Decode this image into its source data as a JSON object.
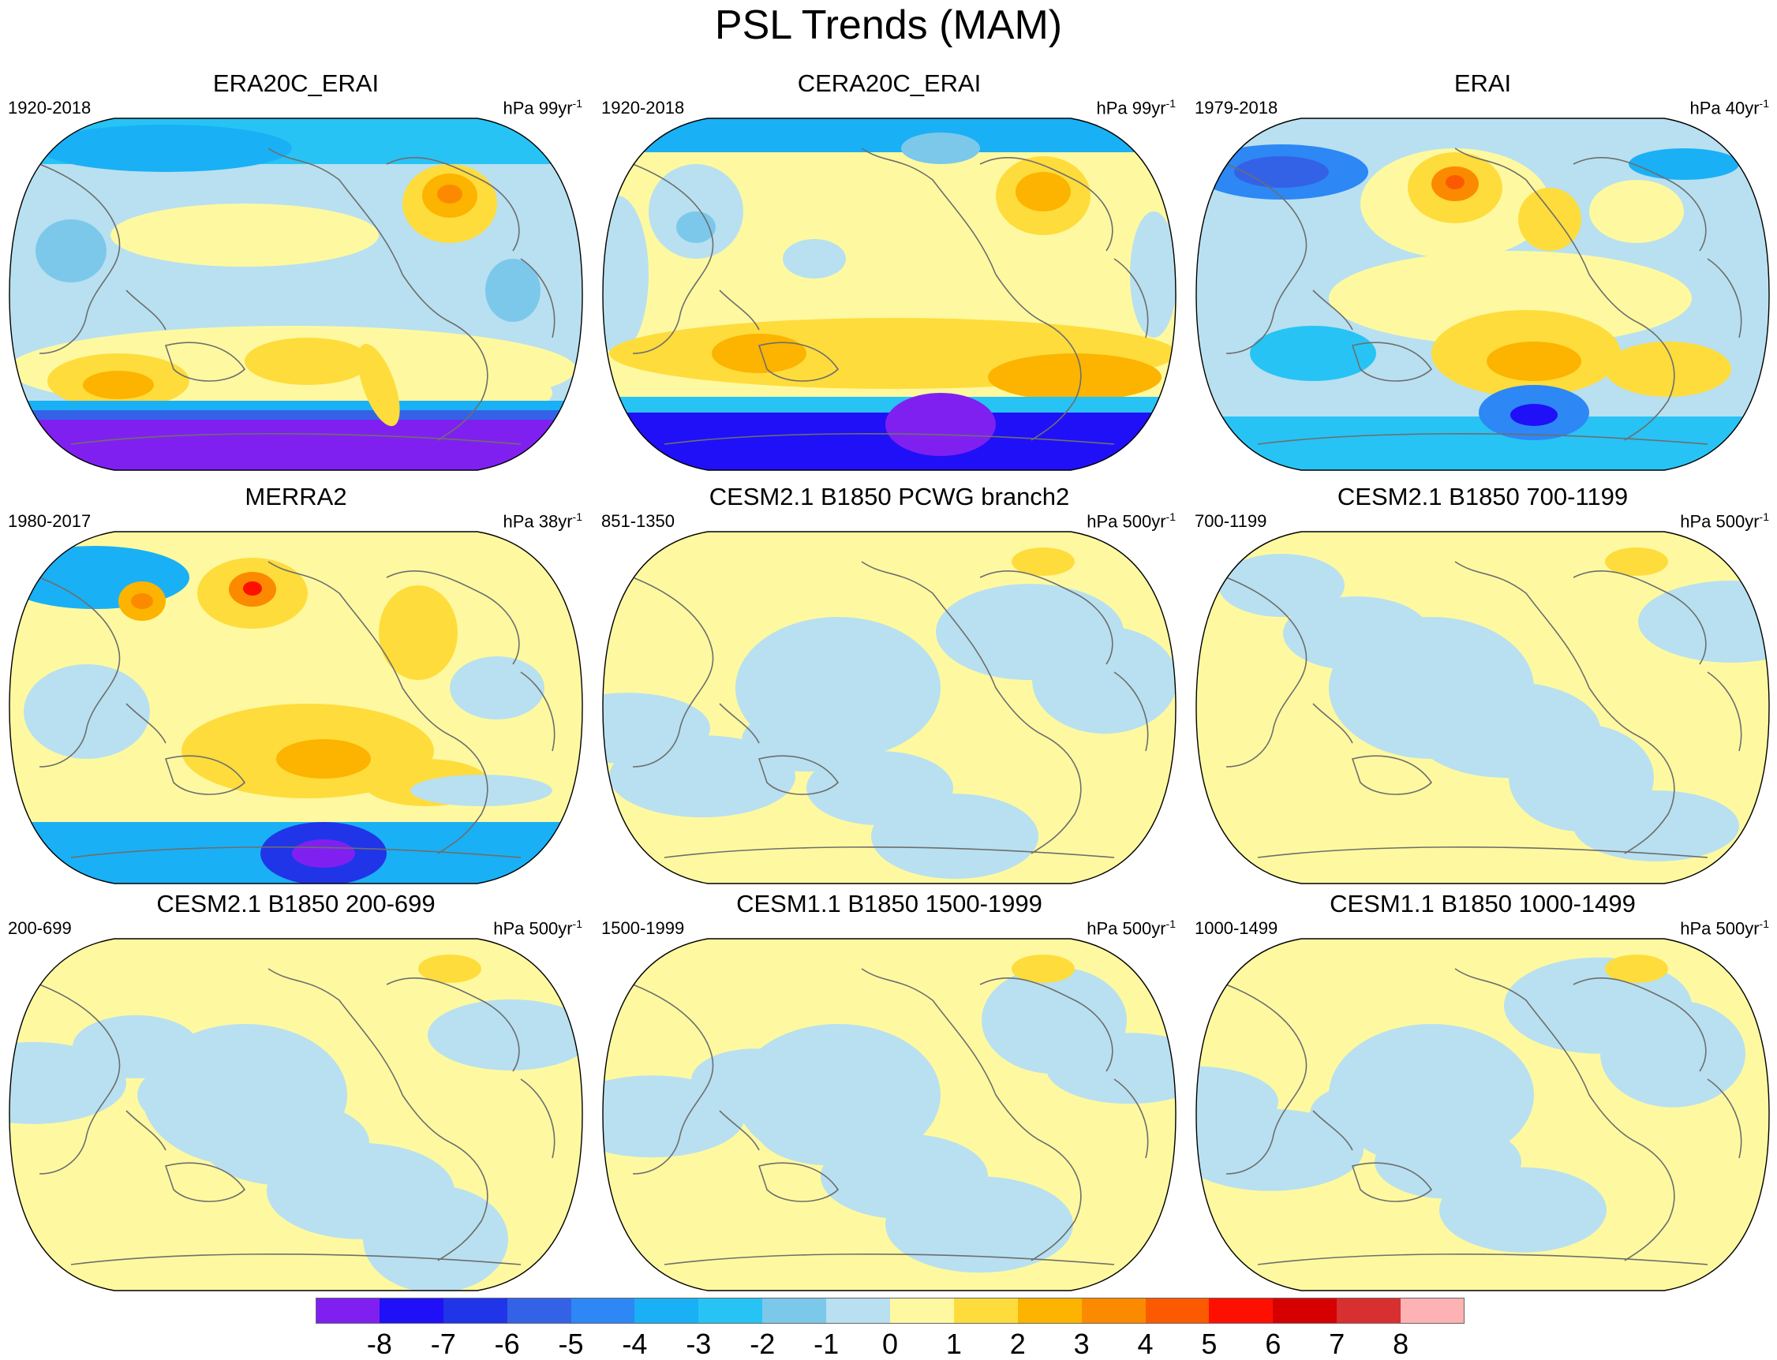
{
  "title": "PSL Trends (MAM)",
  "colors": {
    "levels": [
      "#8020f0",
      "#2010f8",
      "#2035e8",
      "#3462e6",
      "#2d87f5",
      "#1ab0f5",
      "#27c3f5",
      "#7cc8ea",
      "#b8e0f0",
      "#fef9a0",
      "#fedc3c",
      "#fcb400",
      "#fc8a00",
      "#fc5a00",
      "#fd1000",
      "#d60000",
      "#d83030",
      "#ffb2b4"
    ],
    "land_outline": "#6e6e6e",
    "frame": "#000000"
  },
  "colorbar": {
    "labels": [
      "-8",
      "-7",
      "-6",
      "-5",
      "-4",
      "-3",
      "-2",
      "-1",
      "0",
      "1",
      "2",
      "3",
      "4",
      "5",
      "6",
      "7",
      "8"
    ]
  },
  "panels": [
    {
      "title": "ERA20C_ERAI",
      "period": "1920-2018",
      "units": "hPa 99yr",
      "units_sup": "-1",
      "pattern": "reanalysis-strong"
    },
    {
      "title": "CERA20C_ERAI",
      "period": "1920-2018",
      "units": "hPa 99yr",
      "units_sup": "-1",
      "pattern": "reanalysis-medium"
    },
    {
      "title": "ERAI",
      "period": "1979-2018",
      "units": "hPa 40yr",
      "units_sup": "-1",
      "pattern": "reanalysis-recent"
    },
    {
      "title": "MERRA2",
      "period": "1980-2017",
      "units": "hPa 38yr",
      "units_sup": "-1",
      "pattern": "reanalysis-recent2"
    },
    {
      "title": "CESM2.1 B1850 PCWG branch2",
      "period": "851-1350",
      "units": "hPa 500yr",
      "units_sup": "-1",
      "pattern": "model"
    },
    {
      "title": "CESM2.1 B1850 700-1199",
      "period": "700-1199",
      "units": "hPa 500yr",
      "units_sup": "-1",
      "pattern": "model"
    },
    {
      "title": "CESM2.1 B1850 200-699",
      "period": "200-699",
      "units": "hPa 500yr",
      "units_sup": "-1",
      "pattern": "model"
    },
    {
      "title": "CESM1.1 B1850 1500-1999",
      "period": "1500-1999",
      "units": "hPa 500yr",
      "units_sup": "-1",
      "pattern": "model"
    },
    {
      "title": "CESM1.1 B1850 1000-1499",
      "period": "1000-1499",
      "units": "hPa 500yr",
      "units_sup": "-1",
      "pattern": "model"
    }
  ]
}
